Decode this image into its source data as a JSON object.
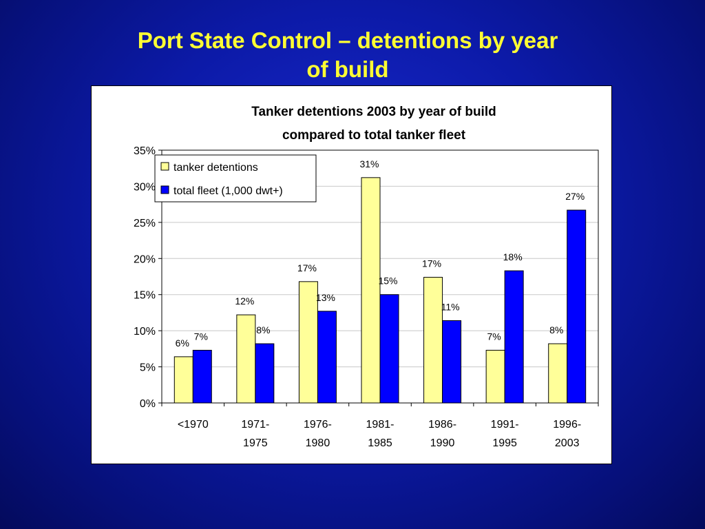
{
  "slide": {
    "title_line1": "Port State Control – detentions by year",
    "title_line2": "of build"
  },
  "chart_data": {
    "type": "bar",
    "title": "Tanker detentions 2003 by year of build compared to total tanker fleet",
    "title_lines": [
      "Tanker detentions 2003 by year of build",
      "compared to total tanker fleet"
    ],
    "categories": [
      [
        "<1970"
      ],
      [
        "1971-",
        "1975"
      ],
      [
        "1976-",
        "1980"
      ],
      [
        "1981-",
        "1985"
      ],
      [
        "1986-",
        "1990"
      ],
      [
        "1991-",
        "1995"
      ],
      [
        "1996-",
        "2003"
      ]
    ],
    "series": [
      {
        "name": "tanker detentions",
        "color": "#ffff99",
        "values": [
          6.4,
          12.2,
          16.8,
          31.2,
          17.4,
          7.3,
          8.2
        ],
        "labels": [
          "6%",
          "12%",
          "17%",
          "31%",
          "17%",
          "7%",
          "8%"
        ]
      },
      {
        "name": "total fleet (1,000 dwt+)",
        "color": "#0000ff",
        "values": [
          7.3,
          8.2,
          12.7,
          15.0,
          11.4,
          18.3,
          26.7
        ],
        "labels": [
          "7%",
          "8%",
          "13%",
          "15%",
          "11%",
          "18%",
          "27%"
        ]
      }
    ],
    "ylim": [
      0,
      35
    ],
    "yticks": [
      0,
      5,
      10,
      15,
      20,
      25,
      30,
      35
    ],
    "ytick_labels": [
      "0%",
      "5%",
      "10%",
      "15%",
      "20%",
      "25%",
      "30%",
      "35%"
    ],
    "xlabel": "",
    "ylabel": "",
    "grid": true,
    "legend_position": "top-left"
  }
}
